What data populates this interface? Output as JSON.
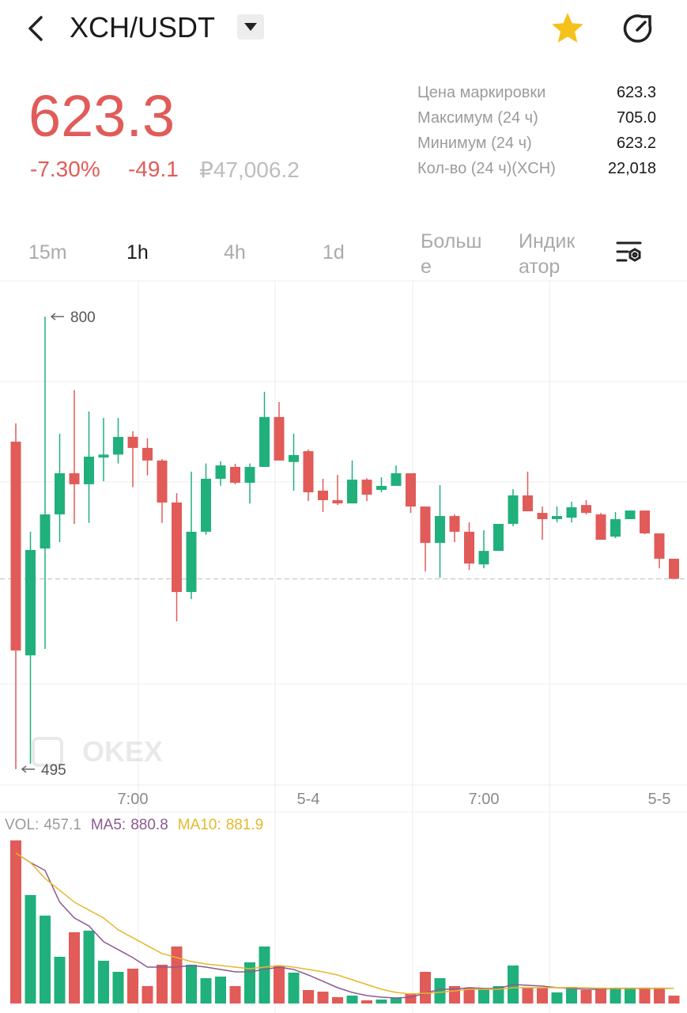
{
  "header": {
    "pair": "XCH/USDT"
  },
  "ticker": {
    "price": "623.3",
    "change_percent": "-7.30%",
    "change": "-49.1",
    "fiat_price": "₽47,006.2"
  },
  "stats": [
    {
      "label": "Цена маркировки",
      "value": "623.3"
    },
    {
      "label": "Максимум (24 ч)",
      "value": "705.0"
    },
    {
      "label": "Минимум (24 ч)",
      "value": "623.2"
    },
    {
      "label": "Кол-во (24 ч)(XCH)",
      "value": "22,018"
    }
  ],
  "intervals": [
    "15m",
    "1h",
    "4h",
    "1d"
  ],
  "more": "Больше",
  "indicator": "Индикатор",
  "watermark": "OKEX",
  "chart_data": [
    {
      "type": "candlestick",
      "categories": [
        null,
        null,
        null,
        null,
        null,
        null,
        null,
        null,
        "7:00",
        null,
        null,
        null,
        null,
        null,
        null,
        null,
        null,
        null,
        null,
        null,
        "5-4",
        null,
        null,
        null,
        null,
        null,
        null,
        null,
        null,
        null,
        null,
        null,
        "7:00",
        null,
        null,
        null,
        null,
        null,
        null,
        null,
        null,
        null,
        null,
        null,
        "5-5",
        null
      ],
      "open": [
        715.7,
        571.7,
        643.7,
        666.7,
        694.4,
        687,
        705,
        707,
        719,
        711.5,
        703,
        674.7,
        614.4,
        655,
        690.7,
        698.7,
        688,
        698.7,
        732.3,
        702,
        709.3,
        682.7,
        676.3,
        674.1,
        690.1,
        683.2,
        685.9,
        694.4,
        672,
        647.5,
        665.6,
        655,
        633,
        642.1,
        660.3,
        679.5,
        667.7,
        663.5,
        664.5,
        673,
        666.7,
        651.7,
        663.5,
        669.3,
        653.9,
        636.8
      ],
      "high": [
        728,
        655,
        800,
        721,
        750.4,
        736,
        731.7,
        731.7,
        722.7,
        718,
        704,
        681,
        695.5,
        701,
        702.4,
        700.8,
        701,
        749.3,
        742.4,
        721,
        710.4,
        690.7,
        693.3,
        703,
        691,
        691.7,
        699.7,
        694.4,
        672,
        686.4,
        666.7,
        661.3,
        656,
        660.3,
        683.7,
        695.5,
        672,
        672,
        675.2,
        676.3,
        667.7,
        668.3,
        669.3,
        669.3,
        653.9,
        636.8
      ],
      "low": [
        495,
        498.7,
        576,
        648,
        660.3,
        661,
        689,
        701,
        685,
        693,
        661,
        594.7,
        609.6,
        653,
        686,
        687,
        674,
        698.7,
        703,
        682.7,
        675.7,
        668.3,
        673,
        674.1,
        675.7,
        681.6,
        685.9,
        667.7,
        628.3,
        624,
        648,
        629.3,
        630.4,
        642.1,
        658.7,
        668.8,
        649.6,
        661.3,
        661.3,
        666.7,
        649.6,
        650.7,
        663.5,
        653.3,
        630.4,
        623.3
      ],
      "close": [
        575,
        642.7,
        666.7,
        694.4,
        687,
        705.6,
        707,
        718.9,
        711.5,
        703,
        674.7,
        614.4,
        655,
        690.7,
        699.7,
        688,
        698.7,
        732.3,
        703,
        706.7,
        681.6,
        676.3,
        674.1,
        690.1,
        680,
        685.9,
        694.4,
        672,
        647.5,
        665.6,
        655,
        633.6,
        642.1,
        660.3,
        679.5,
        668.8,
        663.5,
        665.6,
        671.5,
        667.7,
        649.6,
        663.5,
        669.3,
        653.9,
        636.8,
        623.3
      ],
      "up_color": "#20b07c",
      "down_color": "#e15b58",
      "ylim": [
        484.3,
        824
      ],
      "max_label": 800,
      "min_label": 495
    },
    {
      "type": "volume",
      "ylim": [
        0,
        10000
      ],
      "series": [
        {
          "name": "VOL:",
          "color": "#9a9a9a",
          "values": [
            9455,
            6288,
            5095,
            2708,
            4131,
            4223,
            2479,
            1836,
            2020,
            1010,
            2249,
            3305,
            2249,
            1469,
            1561,
            1010,
            2387,
            3305,
            2157,
            1790,
            780,
            689,
            367,
            459,
            184,
            230,
            321,
            597,
            1836,
            1469,
            1010,
            918,
            826,
            1010,
            2203,
            918,
            918,
            643,
            964,
            780,
            918,
            918,
            918,
            918,
            918,
            457.1
          ]
        },
        {
          "name": "MA5:",
          "color": "#8c5a8f",
          "values": [
            8721,
            8170,
            7711,
            5875,
            4957,
            4498,
            3580,
            3121,
            2662,
            2111,
            2111,
            2111,
            2203,
            2111,
            1974,
            1836,
            1836,
            1974,
            2111,
            1974,
            1652,
            1285,
            918,
            643,
            459,
            367,
            321,
            367,
            597,
            826,
            826,
            918,
            872,
            872,
            1102,
            1056,
            1010,
            918,
            872,
            826,
            826,
            872,
            872,
            872,
            872,
            880.8
          ]
        },
        {
          "name": "MA10:",
          "color": "#e6b82a",
          "values": [
            8721,
            8170,
            7252,
            6563,
            5875,
            5416,
            4957,
            4269,
            3810,
            3351,
            2892,
            2662,
            2433,
            2295,
            2203,
            2111,
            2020,
            2111,
            2203,
            2111,
            1974,
            1836,
            1652,
            1377,
            1102,
            826,
            643,
            551,
            597,
            643,
            734,
            826,
            826,
            826,
            918,
            918,
            918,
            918,
            918,
            918,
            872,
            872,
            872,
            872,
            872,
            881.9
          ]
        }
      ]
    }
  ]
}
